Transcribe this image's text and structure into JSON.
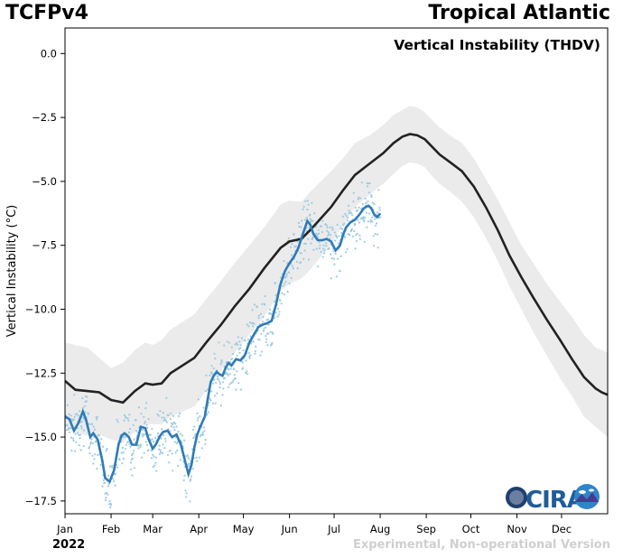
{
  "header": {
    "left_title": "TCFPv4",
    "right_title": "Tropical Atlantic"
  },
  "footer": {
    "year": "2022",
    "note": "Experimental, Non-operational Version"
  },
  "logos": {
    "cira": "CIRA",
    "colors": {
      "cira_blue": "#1f5c99",
      "globe_blue": "#2e86c9"
    }
  },
  "colors": {
    "climatology_line": "#222222",
    "climatology_band": "#ebebeb",
    "observed_line": "#2f7bb6",
    "observed_points": "#9ecae1"
  },
  "chart_data": {
    "type": "line",
    "title": "Vertical Instability (THDV)",
    "ylabel": "Vertical Instability (°C)",
    "xlabel": "",
    "ylim": [
      -18,
      1
    ],
    "yticks": [
      0.0,
      -2.5,
      -5.0,
      -7.5,
      -10.0,
      -12.5,
      -15.0,
      -17.5
    ],
    "ytick_labels": [
      "0.0",
      "−2.5",
      "−5.0",
      "−7.5",
      "−10.0",
      "−12.5",
      "−15.0",
      "−17.5"
    ],
    "xlim": [
      1,
      366
    ],
    "xticks": [
      1,
      32,
      60,
      91,
      121,
      152,
      182,
      213,
      244,
      274,
      305,
      335
    ],
    "xtick_labels": [
      "Jan",
      "Feb",
      "Mar",
      "Apr",
      "May",
      "Jun",
      "Jul",
      "Aug",
      "Sep",
      "Oct",
      "Nov",
      "Dec"
    ],
    "grid": false,
    "series": [
      {
        "kind": "climatology_mean",
        "x": [
          1,
          8,
          16,
          24,
          32,
          40,
          48,
          55,
          60,
          66,
          72,
          80,
          88,
          96,
          106,
          115,
          125,
          135,
          146,
          152,
          160,
          166,
          173,
          180,
          188,
          196,
          206,
          215,
          222,
          228,
          233,
          238,
          243,
          248,
          253,
          260,
          268,
          276,
          284,
          292,
          300,
          308,
          316,
          325,
          334,
          342,
          350,
          358,
          362,
          366
        ],
        "y": [
          -12.8,
          -13.15,
          -13.2,
          -13.25,
          -13.55,
          -13.65,
          -13.2,
          -12.9,
          -12.95,
          -12.9,
          -12.5,
          -12.2,
          -11.9,
          -11.3,
          -10.6,
          -9.9,
          -9.2,
          -8.4,
          -7.6,
          -7.35,
          -7.25,
          -6.9,
          -6.45,
          -6.0,
          -5.35,
          -4.75,
          -4.3,
          -3.9,
          -3.5,
          -3.25,
          -3.15,
          -3.2,
          -3.35,
          -3.65,
          -3.95,
          -4.25,
          -4.6,
          -5.2,
          -6.0,
          -6.9,
          -7.9,
          -8.75,
          -9.55,
          -10.4,
          -11.2,
          -11.95,
          -12.65,
          -13.1,
          -13.25,
          -13.35
        ]
      },
      {
        "kind": "climatology_band_upper",
        "x": [
          1,
          8,
          16,
          24,
          32,
          40,
          48,
          55,
          60,
          66,
          72,
          80,
          88,
          96,
          106,
          115,
          125,
          135,
          146,
          152,
          160,
          166,
          173,
          180,
          188,
          196,
          206,
          215,
          222,
          228,
          233,
          238,
          243,
          248,
          253,
          260,
          268,
          276,
          284,
          292,
          300,
          308,
          316,
          325,
          334,
          342,
          350,
          358,
          362,
          366
        ],
        "y": [
          -11.3,
          -11.4,
          -11.5,
          -11.9,
          -12.3,
          -12.1,
          -11.6,
          -11.3,
          -11.4,
          -11.2,
          -10.8,
          -10.5,
          -10.2,
          -9.6,
          -8.9,
          -8.2,
          -7.5,
          -6.8,
          -5.9,
          -5.75,
          -5.8,
          -5.4,
          -5.0,
          -4.6,
          -4.1,
          -3.5,
          -3.2,
          -2.8,
          -2.4,
          -2.2,
          -2.05,
          -2.1,
          -2.3,
          -2.6,
          -2.9,
          -3.2,
          -3.5,
          -4.1,
          -4.9,
          -5.7,
          -6.6,
          -7.5,
          -8.2,
          -9.0,
          -9.7,
          -10.3,
          -11.0,
          -11.5,
          -11.6,
          -11.7
        ]
      },
      {
        "kind": "climatology_band_lower",
        "x": [
          1,
          8,
          16,
          24,
          32,
          40,
          48,
          55,
          60,
          66,
          72,
          80,
          88,
          96,
          106,
          115,
          125,
          135,
          146,
          152,
          160,
          166,
          173,
          180,
          188,
          196,
          206,
          215,
          222,
          228,
          233,
          238,
          243,
          248,
          253,
          260,
          268,
          276,
          284,
          292,
          300,
          308,
          316,
          325,
          334,
          342,
          350,
          358,
          362,
          366
        ],
        "y": [
          -14.5,
          -14.8,
          -14.95,
          -14.9,
          -15.1,
          -15.2,
          -14.8,
          -14.5,
          -14.5,
          -14.5,
          -14.2,
          -14.0,
          -13.8,
          -13.2,
          -12.4,
          -11.7,
          -11.0,
          -10.3,
          -9.3,
          -9.0,
          -8.8,
          -8.45,
          -7.95,
          -7.45,
          -6.7,
          -6.0,
          -5.5,
          -5.1,
          -4.7,
          -4.4,
          -4.25,
          -4.3,
          -4.45,
          -4.8,
          -5.1,
          -5.4,
          -5.8,
          -6.4,
          -7.2,
          -8.1,
          -9.1,
          -10.0,
          -10.9,
          -11.8,
          -12.7,
          -13.4,
          -14.2,
          -14.6,
          -14.8,
          -15.0
        ]
      },
      {
        "kind": "observed_2022_smoothed",
        "x": [
          1,
          4,
          7,
          10,
          13,
          15,
          18,
          20,
          23,
          26,
          28,
          31,
          34,
          37,
          39,
          41,
          44,
          46,
          49,
          52,
          55,
          57,
          60,
          62,
          65,
          67,
          70,
          73,
          76,
          79,
          82,
          84,
          86,
          88,
          90,
          92,
          95,
          97,
          99,
          101,
          103,
          105,
          107,
          109,
          111,
          113,
          116,
          119,
          122,
          125,
          128,
          131,
          134,
          137,
          140,
          143,
          146,
          149,
          152,
          155,
          158,
          161,
          164,
          166,
          168,
          171,
          174,
          177,
          180,
          183,
          186,
          188,
          190,
          193,
          196,
          199,
          202,
          205,
          207,
          209,
          211,
          213
        ],
        "y": [
          -14.2,
          -14.3,
          -14.75,
          -14.45,
          -14.0,
          -14.3,
          -15.0,
          -14.85,
          -15.1,
          -15.9,
          -16.6,
          -16.75,
          -16.3,
          -15.3,
          -14.95,
          -14.85,
          -15.0,
          -15.3,
          -15.3,
          -14.6,
          -14.65,
          -15.05,
          -15.45,
          -15.3,
          -14.95,
          -14.8,
          -14.75,
          -15.0,
          -14.9,
          -15.3,
          -16.0,
          -16.45,
          -16.1,
          -15.4,
          -14.9,
          -14.6,
          -14.2,
          -13.5,
          -12.85,
          -12.6,
          -12.45,
          -12.55,
          -12.6,
          -12.3,
          -12.1,
          -12.2,
          -11.95,
          -12.0,
          -11.8,
          -11.3,
          -11.0,
          -10.7,
          -10.6,
          -10.55,
          -10.45,
          -9.8,
          -9.0,
          -8.5,
          -8.2,
          -7.95,
          -7.6,
          -7.05,
          -6.55,
          -6.7,
          -7.05,
          -7.3,
          -7.3,
          -7.25,
          -7.35,
          -7.7,
          -7.5,
          -7.1,
          -6.8,
          -6.6,
          -6.5,
          -6.3,
          -6.05,
          -5.95,
          -6.05,
          -6.3,
          -6.4,
          -6.25
        ]
      }
    ]
  }
}
